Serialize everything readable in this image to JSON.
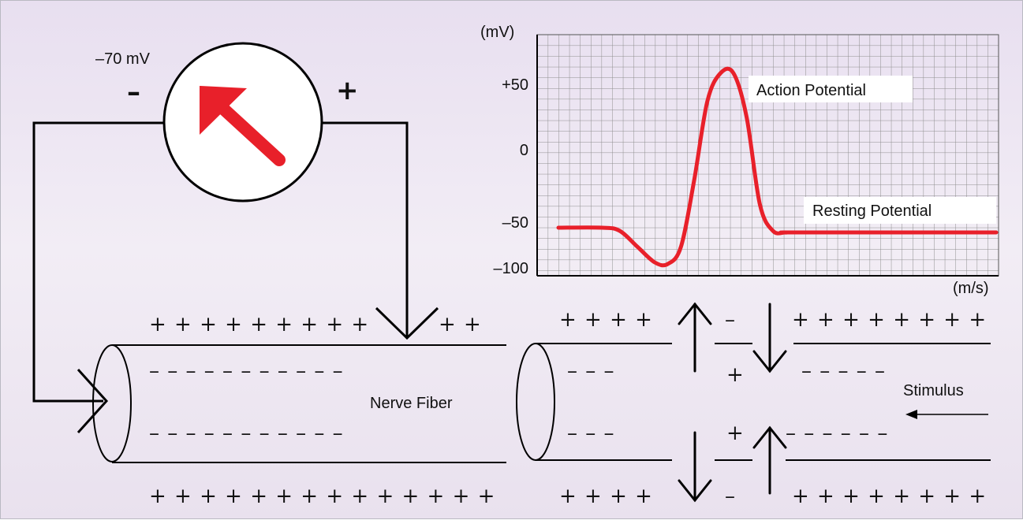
{
  "meter": {
    "reading": "–70 mV",
    "negative_terminal": "–",
    "positive_terminal": "+",
    "needle_color": "#e8202a"
  },
  "chart_data": {
    "type": "line",
    "ylabel": "(mV)",
    "xlabel": "(m/s)",
    "yticks": [
      "+50",
      "0",
      "–50",
      "–100"
    ],
    "annotations": [
      "Action Potential",
      "Resting Potential"
    ],
    "grid": true,
    "series": [
      {
        "color": "#e8202a",
        "x": [
          0,
          10,
          14,
          18,
          22,
          25,
          28,
          31,
          34,
          37,
          40,
          43,
          46,
          49,
          52,
          55,
          100
        ],
        "y": [
          -50,
          -50,
          -52,
          -62,
          -72,
          -73,
          -62,
          -20,
          30,
          48,
          48,
          20,
          -35,
          -52,
          -53,
          -53,
          -53
        ]
      }
    ]
  },
  "fiber_left": {
    "label": "Nerve Fiber",
    "top_charges": "+ + + + + + + + +",
    "top_charges_right": "+ +",
    "inner_top_charges": "– – – – – – – – – – –",
    "inner_bottom_charges": "– – – – – – – – – – –",
    "bottom_charges": "+ + + + + + + + + + + + + +"
  },
  "fiber_right": {
    "top_left_charges": "+ + + +",
    "top_mid_charge": "–",
    "top_right_charges": "+ + + + + + + +",
    "inner_top_left": "– – –",
    "inner_top_mid": "+",
    "inner_top_right": "– – – – –",
    "inner_bottom_left": "– – –",
    "inner_bottom_mid": "+",
    "inner_bottom_right": "– – – – – –",
    "bottom_left_charges": "+ + + +",
    "bottom_mid_charge": "–",
    "bottom_right_charges": "+ + + + + + + +",
    "stimulus_label": "Stimulus"
  }
}
